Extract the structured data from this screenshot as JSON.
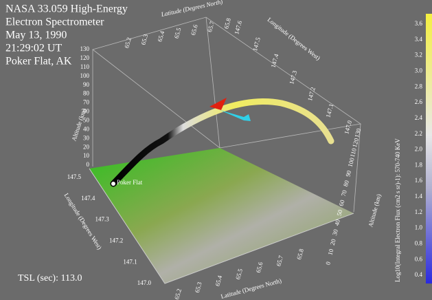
{
  "title_lines": [
    "NASA 33.059 High-Energy",
    "Electron Spectrometer",
    "May 13, 1990",
    "21:29:02 UT",
    "Poker Flat, AK"
  ],
  "axes": {
    "latitude_label": "Latitude (Degrees North)",
    "longitude_label": "Longitude (Degrees West)",
    "altitude_label": "Altitude (km)",
    "top_latitude_ticks": [
      "65.2",
      "65.3",
      "65.4",
      "65.5",
      "65.6",
      "65.7",
      "65.8"
    ],
    "top_longitude_ticks": [
      "147.6",
      "147.5",
      "147.4",
      "147.3",
      "147.2",
      "147.1",
      "147.0"
    ],
    "left_altitude_ticks": [
      "0",
      "10",
      "20",
      "30",
      "40",
      "50",
      "60",
      "70",
      "80",
      "90",
      "100",
      "110",
      "120",
      "130"
    ],
    "left_longitude_ticks": [
      "147.5",
      "147.4",
      "147.3",
      "147.2",
      "147.1",
      "147.0"
    ],
    "bottom_latitude_ticks": [
      "65.2",
      "65.3",
      "65.4",
      "65.5",
      "65.6",
      "65.7",
      "65.8"
    ],
    "right_altitude_ticks": [
      "0",
      "10",
      "20",
      "30",
      "40",
      "50",
      "60",
      "70",
      "80",
      "90",
      "100",
      "110",
      "120",
      "130"
    ]
  },
  "site_label": "Poker Flat",
  "tsl": "TSL (sec): 113.0",
  "colorbar": {
    "label": "Log10(Integral Electron Flux (cm2 s sr)-1): 570-740 KeV",
    "ticks": [
      "0.4",
      "0.6",
      "0.8",
      "1.0",
      "1.2",
      "1.4",
      "1.6",
      "1.8",
      "2.0",
      "2.2",
      "2.4",
      "2.6",
      "2.8",
      "3.0",
      "3.2",
      "3.4",
      "3.6"
    ]
  }
}
